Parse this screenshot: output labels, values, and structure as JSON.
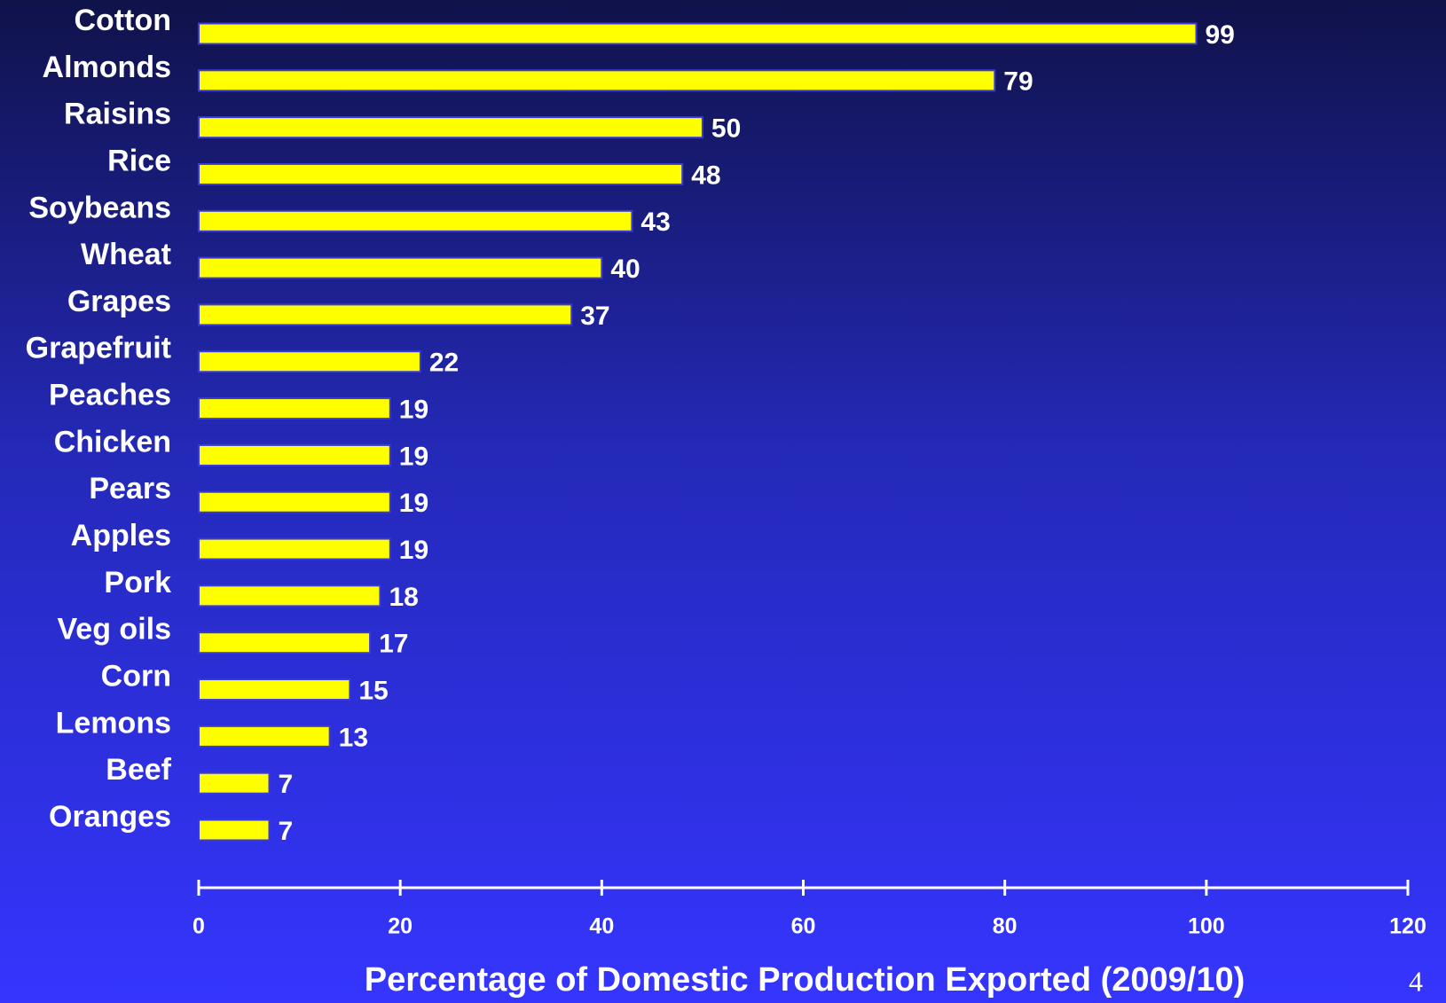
{
  "chart_data": {
    "type": "bar",
    "orientation": "horizontal",
    "x_label": "Percentage of Domestic Production Exported (2009/10)",
    "categories": [
      "Cotton",
      "Almonds",
      "Raisins",
      "Rice",
      "Soybeans",
      "Wheat",
      "Grapes",
      "Grapefruit",
      "Peaches",
      "Chicken",
      "Pears",
      "Apples",
      "Pork",
      "Veg oils",
      "Corn",
      "Lemons",
      "Beef",
      "Oranges"
    ],
    "values": [
      99,
      79,
      50,
      48,
      43,
      40,
      37,
      22,
      19,
      19,
      19,
      19,
      18,
      17,
      15,
      13,
      7,
      7
    ],
    "color": "#ffff00",
    "xlim": [
      0,
      120
    ],
    "xticks": [
      0,
      20,
      40,
      60,
      80,
      100,
      120
    ]
  },
  "page_number": "4"
}
